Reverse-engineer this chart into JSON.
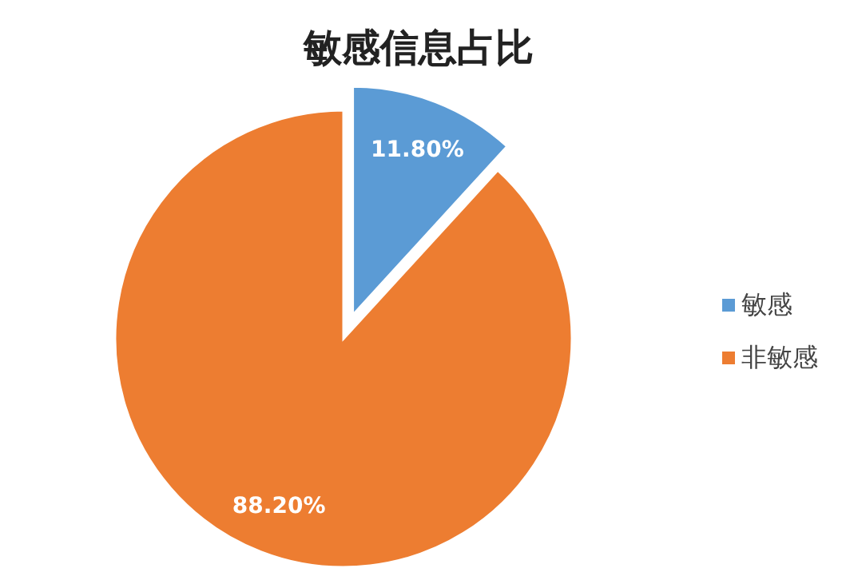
{
  "chart_data": {
    "type": "pie",
    "title": "敏感信息占比",
    "categories": [
      "敏感",
      "非敏感"
    ],
    "values": [
      11.8,
      88.2
    ],
    "colors": [
      "#5b9bd5",
      "#ed7d31"
    ],
    "value_labels": [
      "11.80%",
      "88.20%"
    ],
    "legend": "right"
  }
}
